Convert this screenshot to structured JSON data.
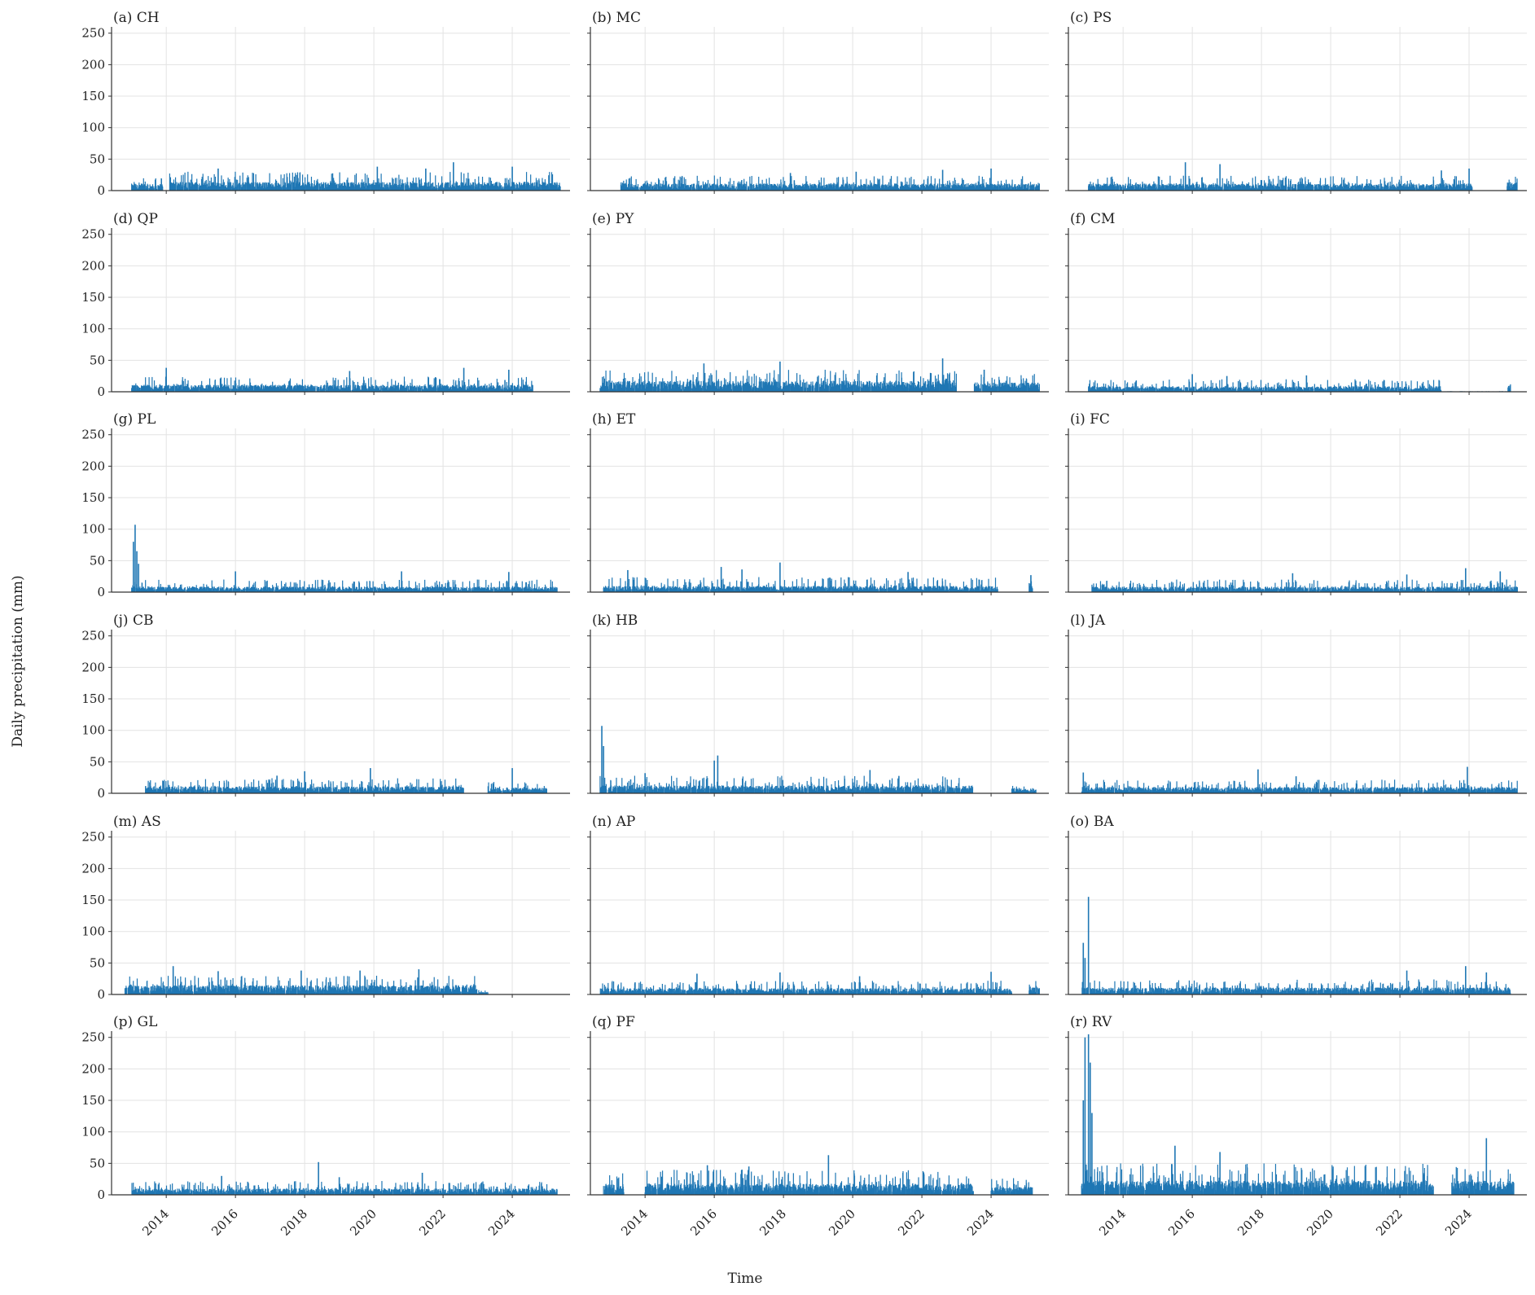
{
  "figure": {
    "ylabel": "Daily precipitation (mm)",
    "xlabel": "Time",
    "accent_color": "#1f77b4"
  },
  "chart_data": {
    "type": "bar",
    "xlim": [
      "2012-06-01",
      "2025-09-01"
    ],
    "ylim": [
      0,
      260
    ],
    "y_ticks": [
      0,
      50,
      100,
      150,
      200,
      250
    ],
    "x_ticks": [
      "2014",
      "2016",
      "2018",
      "2020",
      "2022",
      "2024"
    ],
    "grid": true,
    "panels": [
      {
        "title": "(a) CH",
        "series_color": "#1f77b4",
        "segments": [
          {
            "start": 2013.0,
            "end": 2013.9,
            "typical": 9,
            "max": 20
          },
          {
            "start": 2014.1,
            "end": 2025.4,
            "typical": 11,
            "max": 30
          }
        ],
        "peaks": [
          {
            "x": 2022.3,
            "y": 45
          },
          {
            "x": 2020.1,
            "y": 38
          },
          {
            "x": 2024.0,
            "y": 38
          },
          {
            "x": 2021.5,
            "y": 35
          },
          {
            "x": 2015.5,
            "y": 35
          }
        ]
      },
      {
        "title": "(b) MC",
        "series_color": "#1f77b4",
        "segments": [
          {
            "start": 2013.3,
            "end": 2025.4,
            "typical": 9,
            "max": 24
          }
        ],
        "peaks": [
          {
            "x": 2024.0,
            "y": 35
          },
          {
            "x": 2022.6,
            "y": 33
          },
          {
            "x": 2020.1,
            "y": 30
          },
          {
            "x": 2018.2,
            "y": 28
          }
        ]
      },
      {
        "title": "(c) PS",
        "series_color": "#1f77b4",
        "segments": [
          {
            "start": 2013.0,
            "end": 2024.1,
            "typical": 9,
            "max": 24
          },
          {
            "start": 2025.1,
            "end": 2025.4,
            "typical": 12,
            "max": 24
          }
        ],
        "peaks": [
          {
            "x": 2015.8,
            "y": 45
          },
          {
            "x": 2016.8,
            "y": 42
          },
          {
            "x": 2024.0,
            "y": 35
          },
          {
            "x": 2023.2,
            "y": 32
          }
        ]
      },
      {
        "title": "(d) QP",
        "series_color": "#1f77b4",
        "segments": [
          {
            "start": 2013.0,
            "end": 2024.6,
            "typical": 9,
            "max": 24
          }
        ],
        "peaks": [
          {
            "x": 2014.0,
            "y": 38
          },
          {
            "x": 2022.6,
            "y": 38
          },
          {
            "x": 2023.9,
            "y": 35
          },
          {
            "x": 2019.3,
            "y": 33
          }
        ]
      },
      {
        "title": "(e) PY",
        "series_color": "#1f77b4",
        "segments": [
          {
            "start": 2012.7,
            "end": 2023.0,
            "typical": 14,
            "max": 35
          },
          {
            "start": 2023.5,
            "end": 2025.4,
            "typical": 12,
            "max": 30
          }
        ],
        "peaks": [
          {
            "x": 2022.6,
            "y": 53
          },
          {
            "x": 2017.9,
            "y": 48
          },
          {
            "x": 2015.7,
            "y": 45
          },
          {
            "x": 2023.8,
            "y": 35
          }
        ]
      },
      {
        "title": "(f) CM",
        "series_color": "#1f77b4",
        "segments": [
          {
            "start": 2013.0,
            "end": 2023.2,
            "typical": 7,
            "max": 20
          },
          {
            "start": 2023.2,
            "end": 2025.1,
            "typical": 0.6,
            "max": 1
          },
          {
            "start": 2025.1,
            "end": 2025.2,
            "typical": 10,
            "max": 13
          }
        ],
        "peaks": [
          {
            "x": 2016.0,
            "y": 28
          },
          {
            "x": 2017.0,
            "y": 25
          },
          {
            "x": 2019.3,
            "y": 26
          }
        ]
      },
      {
        "title": "(g) PL",
        "series_color": "#1f77b4",
        "segments": [
          {
            "start": 2013.0,
            "end": 2025.3,
            "typical": 7,
            "max": 20
          }
        ],
        "peaks": [
          {
            "x": 2013.1,
            "y": 107
          },
          {
            "x": 2013.05,
            "y": 80
          },
          {
            "x": 2013.15,
            "y": 65
          },
          {
            "x": 2013.2,
            "y": 45
          },
          {
            "x": 2016.0,
            "y": 33
          },
          {
            "x": 2020.8,
            "y": 33
          },
          {
            "x": 2023.9,
            "y": 32
          }
        ]
      },
      {
        "title": "(h) ET",
        "series_color": "#1f77b4",
        "segments": [
          {
            "start": 2012.8,
            "end": 2024.2,
            "typical": 8,
            "max": 24
          },
          {
            "start": 2025.1,
            "end": 2025.2,
            "typical": 15,
            "max": 27
          }
        ],
        "peaks": [
          {
            "x": 2017.9,
            "y": 47
          },
          {
            "x": 2016.2,
            "y": 40
          },
          {
            "x": 2016.8,
            "y": 36
          },
          {
            "x": 2013.5,
            "y": 35
          },
          {
            "x": 2021.6,
            "y": 32
          },
          {
            "x": 2025.15,
            "y": 27
          }
        ]
      },
      {
        "title": "(i) FC",
        "series_color": "#1f77b4",
        "segments": [
          {
            "start": 2013.1,
            "end": 2025.4,
            "typical": 7,
            "max": 20
          }
        ],
        "peaks": [
          {
            "x": 2023.9,
            "y": 38
          },
          {
            "x": 2024.9,
            "y": 33
          },
          {
            "x": 2018.9,
            "y": 30
          },
          {
            "x": 2022.2,
            "y": 28
          }
        ]
      },
      {
        "title": "(j) CB",
        "series_color": "#1f77b4",
        "segments": [
          {
            "start": 2013.4,
            "end": 2022.6,
            "typical": 9,
            "max": 24
          },
          {
            "start": 2023.3,
            "end": 2025.0,
            "typical": 7,
            "max": 18
          }
        ],
        "peaks": [
          {
            "x": 2024.0,
            "y": 40
          },
          {
            "x": 2019.9,
            "y": 40
          },
          {
            "x": 2018.0,
            "y": 35
          },
          {
            "x": 2017.2,
            "y": 28
          }
        ]
      },
      {
        "title": "(k) HB",
        "series_color": "#1f77b4",
        "segments": [
          {
            "start": 2012.7,
            "end": 2023.5,
            "typical": 10,
            "max": 28
          },
          {
            "start": 2024.6,
            "end": 2025.3,
            "typical": 6,
            "max": 14
          }
        ],
        "peaks": [
          {
            "x": 2012.75,
            "y": 107
          },
          {
            "x": 2012.8,
            "y": 75
          },
          {
            "x": 2016.1,
            "y": 60
          },
          {
            "x": 2016.0,
            "y": 52
          },
          {
            "x": 2020.5,
            "y": 37
          },
          {
            "x": 2014.0,
            "y": 32
          }
        ]
      },
      {
        "title": "(l) JA",
        "series_color": "#1f77b4",
        "segments": [
          {
            "start": 2012.8,
            "end": 2025.4,
            "typical": 8,
            "max": 22
          }
        ],
        "peaks": [
          {
            "x": 2012.85,
            "y": 33
          },
          {
            "x": 2017.9,
            "y": 38
          },
          {
            "x": 2023.95,
            "y": 42
          },
          {
            "x": 2019.0,
            "y": 27
          }
        ]
      },
      {
        "title": "(m) AS",
        "series_color": "#1f77b4",
        "segments": [
          {
            "start": 2012.8,
            "end": 2023.0,
            "typical": 12,
            "max": 30
          },
          {
            "start": 2023.0,
            "end": 2023.3,
            "typical": 3,
            "max": 8
          }
        ],
        "peaks": [
          {
            "x": 2014.2,
            "y": 45
          },
          {
            "x": 2019.6,
            "y": 38
          },
          {
            "x": 2015.5,
            "y": 37
          },
          {
            "x": 2021.3,
            "y": 40
          },
          {
            "x": 2017.9,
            "y": 38
          }
        ]
      },
      {
        "title": "(n) AP",
        "series_color": "#1f77b4",
        "segments": [
          {
            "start": 2012.7,
            "end": 2024.6,
            "typical": 8,
            "max": 22
          },
          {
            "start": 2025.1,
            "end": 2025.4,
            "typical": 9,
            "max": 22
          }
        ],
        "peaks": [
          {
            "x": 2017.9,
            "y": 35
          },
          {
            "x": 2024.0,
            "y": 36
          },
          {
            "x": 2015.5,
            "y": 33
          },
          {
            "x": 2020.2,
            "y": 29
          }
        ]
      },
      {
        "title": "(o) BA",
        "series_color": "#1f77b4",
        "segments": [
          {
            "start": 2012.8,
            "end": 2025.2,
            "typical": 9,
            "max": 24
          }
        ],
        "peaks": [
          {
            "x": 2013.0,
            "y": 155
          },
          {
            "x": 2012.85,
            "y": 82
          },
          {
            "x": 2012.9,
            "y": 58
          },
          {
            "x": 2023.9,
            "y": 45
          },
          {
            "x": 2022.2,
            "y": 38
          },
          {
            "x": 2024.5,
            "y": 35
          }
        ]
      },
      {
        "title": "(p) GL",
        "series_color": "#1f77b4",
        "segments": [
          {
            "start": 2013.0,
            "end": 2025.3,
            "typical": 8,
            "max": 22
          }
        ],
        "peaks": [
          {
            "x": 2018.4,
            "y": 52
          },
          {
            "x": 2021.4,
            "y": 35
          },
          {
            "x": 2015.6,
            "y": 30
          },
          {
            "x": 2019.0,
            "y": 28
          }
        ]
      },
      {
        "title": "(q) PF",
        "series_color": "#1f77b4",
        "segments": [
          {
            "start": 2012.8,
            "end": 2013.4,
            "typical": 14,
            "max": 35
          },
          {
            "start": 2014.0,
            "end": 2023.5,
            "typical": 14,
            "max": 40
          },
          {
            "start": 2024.0,
            "end": 2025.2,
            "typical": 10,
            "max": 28
          }
        ],
        "peaks": [
          {
            "x": 2019.3,
            "y": 63
          },
          {
            "x": 2015.8,
            "y": 47
          },
          {
            "x": 2017.0,
            "y": 45
          },
          {
            "x": 2016.8,
            "y": 40
          }
        ]
      },
      {
        "title": "(r) RV",
        "series_color": "#1f77b4",
        "segments": [
          {
            "start": 2012.8,
            "end": 2023.0,
            "typical": 18,
            "max": 50
          },
          {
            "start": 2023.5,
            "end": 2025.3,
            "typical": 18,
            "max": 45
          }
        ],
        "peaks": [
          {
            "x": 2012.85,
            "y": 150
          },
          {
            "x": 2012.9,
            "y": 250
          },
          {
            "x": 2013.0,
            "y": 255
          },
          {
            "x": 2013.05,
            "y": 210
          },
          {
            "x": 2013.1,
            "y": 130
          },
          {
            "x": 2024.5,
            "y": 90
          },
          {
            "x": 2015.5,
            "y": 78
          },
          {
            "x": 2016.8,
            "y": 68
          }
        ]
      }
    ]
  }
}
